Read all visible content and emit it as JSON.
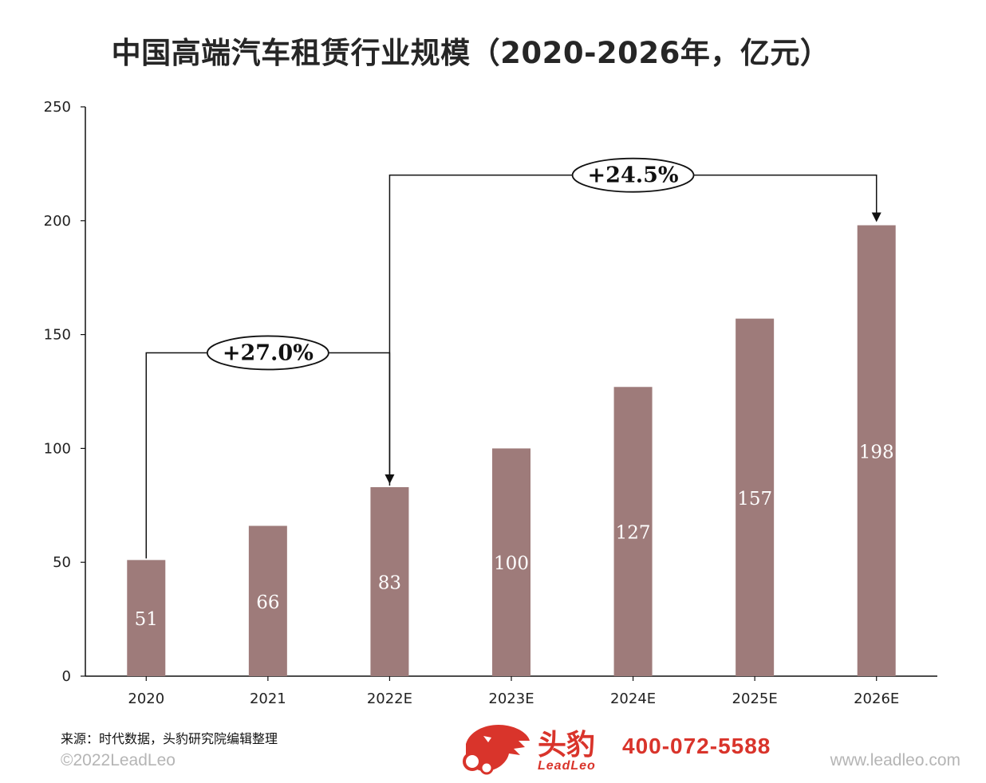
{
  "title": "中国高端汽车租赁行业规模（2020-2026年，亿元）",
  "chart_data": {
    "type": "bar",
    "categories": [
      "2020",
      "2021",
      "2022E",
      "2023E",
      "2024E",
      "2025E",
      "2026E"
    ],
    "values": [
      51,
      66,
      83,
      100,
      127,
      157,
      198
    ],
    "data_labels": [
      "51",
      "66",
      "83",
      "100",
      "127",
      "157",
      "198"
    ],
    "y_ticks": [
      "0",
      "50",
      "100",
      "150",
      "200",
      "250"
    ],
    "ylim": [
      0,
      250
    ],
    "grid": false,
    "legend": "none",
    "bar_color": "#9e7b7a",
    "annotations": [
      {
        "label": "+27.0%",
        "from": "2020",
        "to": "2022E"
      },
      {
        "label": "+24.5%",
        "from": "2022E",
        "to": "2026E"
      }
    ]
  },
  "footer": {
    "source": "来源：时代数据，头豹研究院编辑整理",
    "copyright": "©2022LeadLeo",
    "website": "www.leadleo.com",
    "brand_cn": "头豹",
    "brand_en": "LeadLeo",
    "phone": "400-072-5588",
    "brand_color": "#d9342b"
  }
}
